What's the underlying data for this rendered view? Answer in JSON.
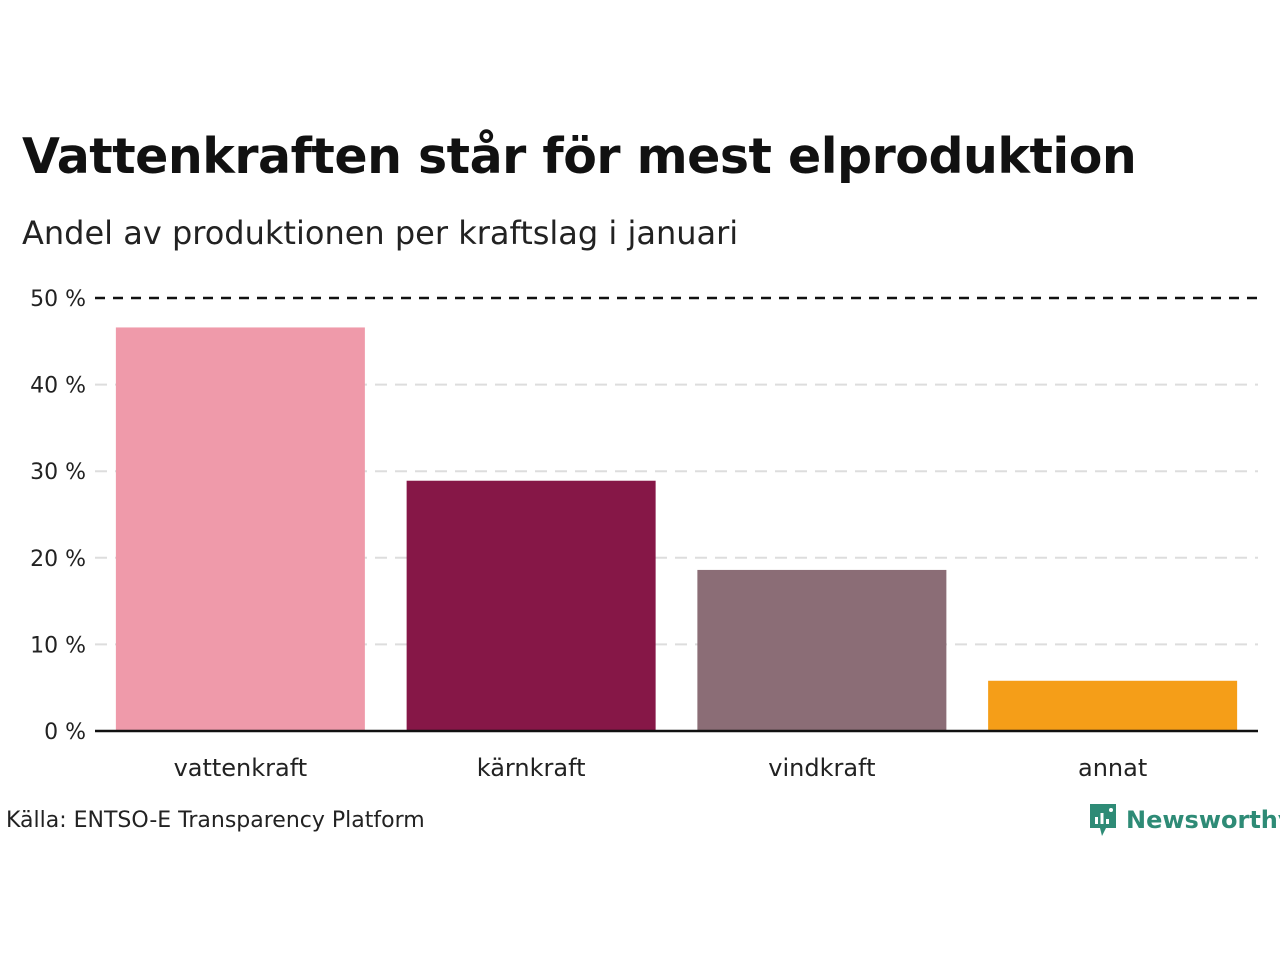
{
  "chart_data": {
    "type": "bar",
    "title": "Vattenkraften står för mest elproduktion",
    "subtitle": "Andel av produktionen per kraftslag i januari",
    "categories": [
      "vattenkraft",
      "kärnkraft",
      "vindkraft",
      "annat"
    ],
    "values": [
      46.6,
      28.9,
      18.6,
      5.8
    ],
    "colors": [
      "#ef9aaa",
      "#861747",
      "#8b6d76",
      "#f59e18"
    ],
    "ylim": [
      0,
      50
    ],
    "yticks": [
      0,
      10,
      20,
      30,
      40,
      50
    ],
    "ytick_labels": [
      "0 %",
      "10 %",
      "20 %",
      "30 %",
      "40 %",
      "50 %"
    ],
    "xlabel": "",
    "ylabel": "",
    "grid": true
  },
  "footer": {
    "source": "Källa: ENTSO-E Transparency Platform",
    "brand": "Newsworthy",
    "brand_color": "#2e8b76"
  }
}
